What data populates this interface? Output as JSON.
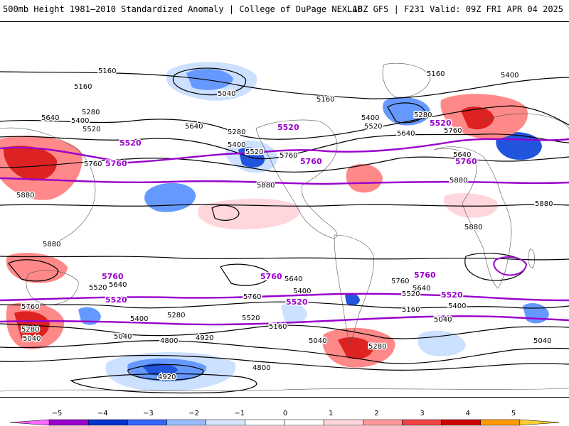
{
  "header": {
    "title_left": "500mb Height 1981–2010 Standardized Anomaly | College of DuPage NEXLAB",
    "title_right": "18Z GFS | F231 Valid: 09Z FRI APR 04 2025"
  },
  "contour_labels": {
    "h5160": "5160",
    "h5040": "5040",
    "h5280": "5280",
    "h5400": "5400",
    "h5520": "5520",
    "h5640": "5640",
    "h5760": "5760",
    "h5880": "5880",
    "h4920": "4920",
    "h4800": "4800"
  },
  "highlight_labels": {
    "p5520": "5520",
    "p5760": "5760"
  },
  "colorbar": {
    "ticks": [
      "−5",
      "−4",
      "−3",
      "−2",
      "−1",
      "0",
      "1",
      "2",
      "3",
      "4",
      "5"
    ],
    "colors": [
      "#ff66ff",
      "#9900cc",
      "#0033cc",
      "#3366ff",
      "#99bbff",
      "#d6e6ff",
      "#ffffff",
      "#ffffff",
      "#ffd6dc",
      "#ff9999",
      "#ee4444",
      "#cc0000",
      "#ff9900",
      "#ffcc33"
    ]
  },
  "anomaly_colors": {
    "neg1": "#cce0ff",
    "neg2": "#6699ff",
    "neg3": "#2255dd",
    "pos1": "#ffd6dc",
    "pos2": "#ff8888",
    "pos3": "#dd2222"
  },
  "highlight_color": "#9900cc"
}
